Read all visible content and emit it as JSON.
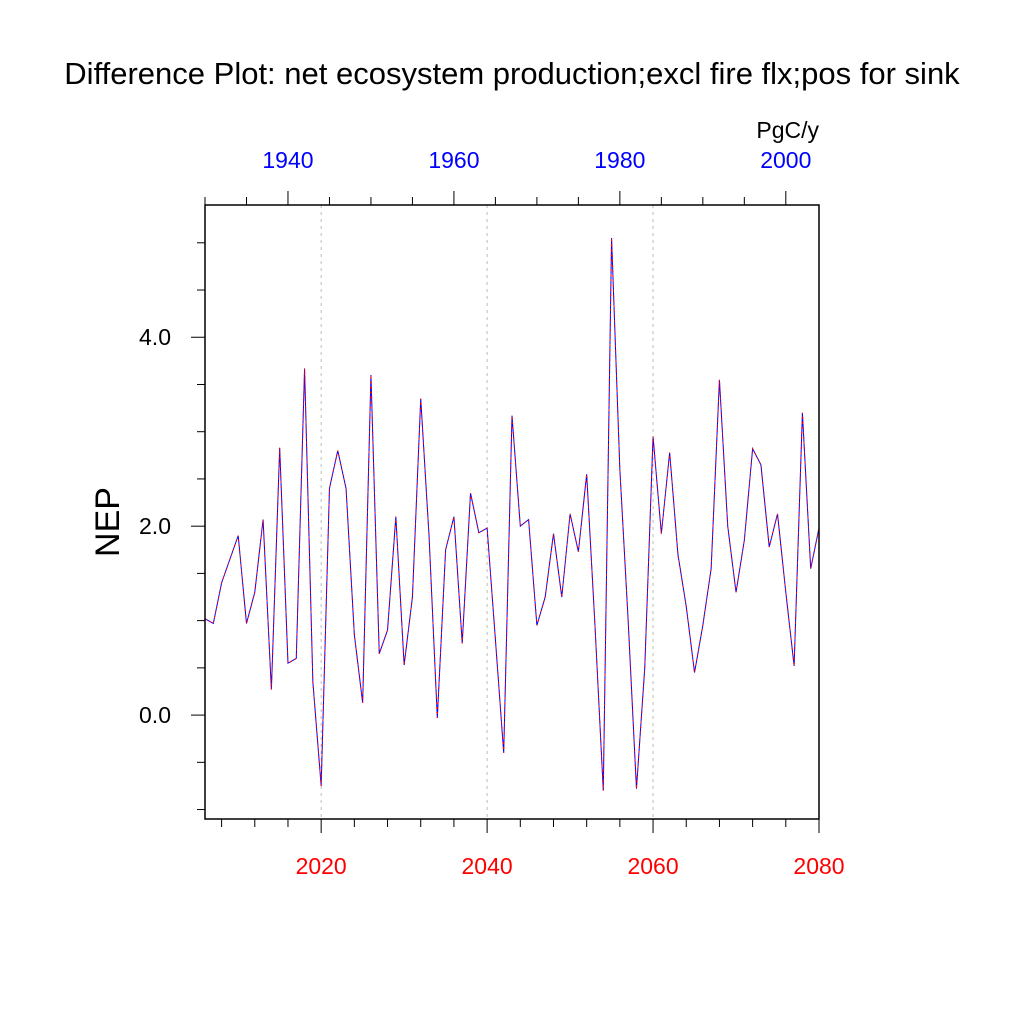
{
  "chart_data": {
    "type": "line",
    "title": "Difference Plot: net ecosystem production;excl fire flx;pos for sink",
    "ylabel": "NEP",
    "units": "PgC/y",
    "ylim": [
      -1.1,
      5.4
    ],
    "y_ticks": [
      0.0,
      2.0,
      4.0
    ],
    "y_tick_labels": [
      "0.0",
      "2.0",
      "4.0"
    ],
    "y_minor_step": 0.5,
    "x_bottom": {
      "range": [
        2006,
        2080
      ],
      "ticks": [
        2020,
        2040,
        2060,
        2080
      ],
      "tick_labels": [
        "2020",
        "2040",
        "2060",
        "2080"
      ],
      "minor_step": 4,
      "color": "#ff0000",
      "grid": "dashed"
    },
    "x_top": {
      "range": [
        1930,
        2004
      ],
      "ticks": [
        1940,
        1960,
        1980,
        2000
      ],
      "tick_labels": [
        "1940",
        "1960",
        "1980",
        "2000"
      ],
      "minor_step": 5,
      "color": "#0000ff"
    },
    "series": [
      {
        "color_primary": "#0000ff",
        "color_secondary": "#ff0000",
        "x": [
          2006,
          2007,
          2008,
          2009,
          2010,
          2011,
          2012,
          2013,
          2014,
          2015,
          2016,
          2017,
          2018,
          2019,
          2020,
          2021,
          2022,
          2023,
          2024,
          2025,
          2026,
          2027,
          2028,
          2029,
          2030,
          2031,
          2032,
          2033,
          2034,
          2035,
          2036,
          2037,
          2038,
          2039,
          2040,
          2041,
          2042,
          2043,
          2044,
          2045,
          2046,
          2047,
          2048,
          2049,
          2050,
          2051,
          2052,
          2053,
          2054,
          2055,
          2056,
          2057,
          2058,
          2059,
          2060,
          2061,
          2062,
          2063,
          2064,
          2065,
          2066,
          2067,
          2068,
          2069,
          2070,
          2071,
          2072,
          2073,
          2074,
          2075,
          2076,
          2077,
          2078,
          2079,
          2080
        ],
        "values": [
          1.02,
          0.97,
          1.4,
          1.65,
          1.9,
          0.97,
          1.3,
          2.07,
          0.27,
          2.83,
          0.55,
          0.6,
          3.67,
          0.35,
          -0.75,
          2.4,
          2.8,
          2.4,
          0.85,
          0.13,
          3.6,
          0.65,
          0.9,
          2.1,
          0.53,
          1.25,
          3.35,
          1.9,
          -0.03,
          1.75,
          2.1,
          0.76,
          2.35,
          1.93,
          1.98,
          0.8,
          -0.4,
          3.17,
          2.0,
          2.07,
          0.95,
          1.25,
          1.92,
          1.25,
          2.13,
          1.73,
          2.55,
          0.95,
          -0.8,
          5.05,
          2.6,
          1.0,
          -0.78,
          0.5,
          2.95,
          1.92,
          2.78,
          1.7,
          1.15,
          0.45,
          0.95,
          1.55,
          3.55,
          2.0,
          1.3,
          1.85,
          2.82,
          2.65,
          1.78,
          2.13,
          1.3,
          0.52,
          3.2,
          1.55,
          1.98
        ]
      }
    ]
  }
}
